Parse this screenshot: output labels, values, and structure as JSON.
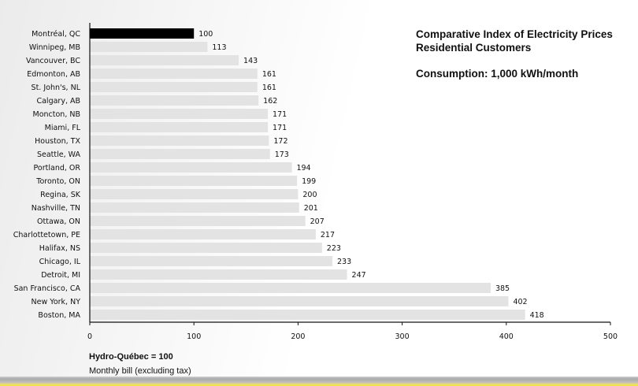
{
  "header": {
    "title_line1": "Comparative Index of Electricity Prices",
    "title_line2": "Residential Customers",
    "consumption": "Consumption: 1,000 kWh/month"
  },
  "footer": {
    "reference_note": "Hydro-Québec = 100",
    "bill_note": "Monthly bill (excluding tax)"
  },
  "colors": {
    "highlight_bar": "#000000",
    "bar": "#e3e3e3",
    "axis": "#111111"
  },
  "chart_data": {
    "type": "bar",
    "orientation": "horizontal",
    "title": "Comparative Index of Electricity Prices Residential Customers",
    "subtitle": "Consumption: 1,000 kWh/month",
    "categories": [
      "Montréal, QC",
      "Winnipeg, MB",
      "Vancouver, BC",
      "Edmonton, AB",
      "St. John's, NL",
      "Calgary, AB",
      "Moncton, NB",
      "Miami, FL",
      "Houston, TX",
      "Seattle, WA",
      "Portland, OR",
      "Toronto, ON",
      "Regina, SK",
      "Nashville, TN",
      "Ottawa, ON",
      "Charlottetown, PE",
      "Halifax, NS",
      "Chicago, IL",
      "Detroit, MI",
      "San Francisco, CA",
      "New York, NY",
      "Boston, MA"
    ],
    "values": [
      100,
      113,
      143,
      161,
      161,
      162,
      171,
      171,
      172,
      173,
      194,
      199,
      200,
      201,
      207,
      217,
      223,
      233,
      247,
      385,
      402,
      418
    ],
    "highlighted_category": "Montréal, QC",
    "xlim": [
      0,
      500
    ],
    "xticks": [
      0,
      100,
      200,
      300,
      400,
      500
    ],
    "grid": false,
    "legend": "none"
  }
}
